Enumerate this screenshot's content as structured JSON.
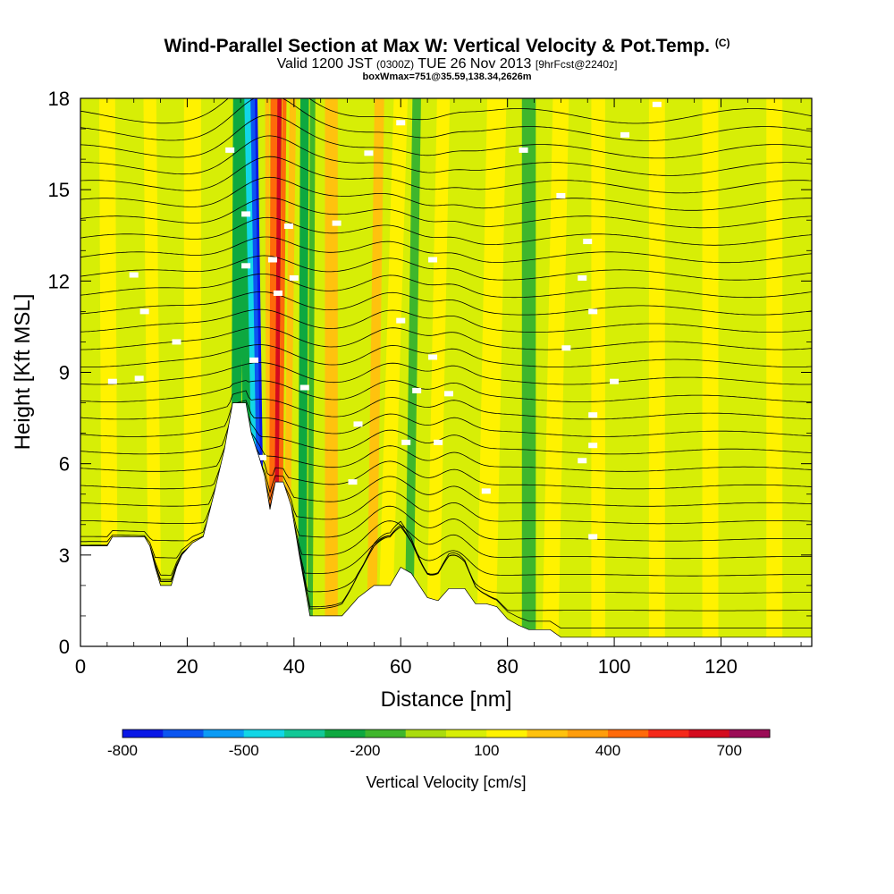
{
  "title": {
    "main": "Wind-Parallel Section at Max W: Vertical Velocity & Pot.Temp.",
    "copyright": "(C)",
    "valid_prefix": "Valid 1200 JST",
    "valid_utc": "(0300Z)",
    "valid_date": "TUE 26 Nov 2013",
    "forecast": "[9hrFcst@2240z]",
    "boxwmax": "boxWmax=751@35.59,138.34,2626m"
  },
  "chart_data": {
    "type": "heatmap",
    "xlabel": "Distance [nm]",
    "ylabel": "Height [Kft MSL]",
    "xlim": [
      0,
      137
    ],
    "ylim": [
      0,
      18
    ],
    "x_ticks": [
      0,
      20,
      40,
      60,
      80,
      100,
      120
    ],
    "y_ticks": [
      0,
      3,
      6,
      9,
      12,
      15,
      18
    ],
    "colorbar": {
      "title": "Vertical Velocity [cm/s]",
      "labels": [
        -800,
        -500,
        -200,
        100,
        400,
        700
      ],
      "bins": [
        -800,
        -700,
        -600,
        -500,
        -400,
        -300,
        -200,
        -100,
        0,
        100,
        200,
        300,
        400,
        500,
        600,
        700,
        800
      ],
      "colors": [
        "#0a18e6",
        "#0b55f0",
        "#0b9bf5",
        "#12d6e6",
        "#12c896",
        "#0ea840",
        "#3fb62c",
        "#aadc0e",
        "#d7ee06",
        "#fff200",
        "#ffc20e",
        "#ff9d0c",
        "#ff6a0a",
        "#f5291a",
        "#d40b1e",
        "#9b0c56",
        "#5c0e8c"
      ]
    },
    "terrain_kft": [
      [
        0,
        3.3
      ],
      [
        5,
        3.3
      ],
      [
        6,
        3.6
      ],
      [
        12,
        3.6
      ],
      [
        13,
        3.3
      ],
      [
        14,
        2.6
      ],
      [
        15,
        2.0
      ],
      [
        17,
        2.0
      ],
      [
        18,
        2.6
      ],
      [
        19,
        3.0
      ],
      [
        21,
        3.4
      ],
      [
        23,
        3.6
      ],
      [
        25,
        5.0
      ],
      [
        27,
        6.5
      ],
      [
        28.5,
        8.0
      ],
      [
        31,
        8.0
      ],
      [
        32,
        7.0
      ],
      [
        33.5,
        6.2
      ],
      [
        34.5,
        5.6
      ],
      [
        35.5,
        4.5
      ],
      [
        36.5,
        5.4
      ],
      [
        38,
        5.4
      ],
      [
        39.5,
        4.6
      ],
      [
        41,
        3.0
      ],
      [
        42,
        2.0
      ],
      [
        43,
        1.0
      ],
      [
        49,
        1.0
      ],
      [
        52,
        1.6
      ],
      [
        55,
        2.0
      ],
      [
        58,
        2.0
      ],
      [
        60,
        2.6
      ],
      [
        62,
        2.4
      ],
      [
        63.5,
        2.0
      ],
      [
        65,
        1.6
      ],
      [
        67,
        1.5
      ],
      [
        69,
        1.9
      ],
      [
        72,
        1.9
      ],
      [
        74,
        1.4
      ],
      [
        76,
        1.4
      ],
      [
        78,
        1.3
      ],
      [
        80,
        0.9
      ],
      [
        82,
        0.7
      ],
      [
        84,
        0.55
      ],
      [
        88,
        0.55
      ],
      [
        90,
        0.3
      ],
      [
        137,
        0.3
      ]
    ],
    "velocity_bands_cm_s": [
      {
        "x_surface": 0.5,
        "x_top": 0.5,
        "width": 1.6,
        "value": 0
      },
      {
        "x_surface": 5.5,
        "x_top": 5.0,
        "width": 3.0,
        "value": 100
      },
      {
        "x_surface": 10.0,
        "x_top": 8.5,
        "width": 1.8,
        "value": 0
      },
      {
        "x_surface": 14.0,
        "x_top": 13.0,
        "width": 2.4,
        "value": 150
      },
      {
        "x_surface": 19.0,
        "x_top": 16.5,
        "width": 2.4,
        "value": 0
      },
      {
        "x_surface": 21.0,
        "x_top": 21.0,
        "width": 3.2,
        "value": 100
      },
      {
        "x_surface": 26.0,
        "x_top": 24.0,
        "width": 2.0,
        "value": 0
      },
      {
        "x_surface": 29.0,
        "x_top": 29.5,
        "width": 1.8,
        "value": -220
      },
      {
        "x_surface": 32.0,
        "x_top": 30.0,
        "width": 1.6,
        "value": -260
      },
      {
        "x_surface": 33.3,
        "x_top": 31.3,
        "width": 1.2,
        "value": -420
      },
      {
        "x_surface": 33.9,
        "x_top": 32.3,
        "width": 0.9,
        "value": -620
      },
      {
        "x_surface": 34.4,
        "x_top": 32.9,
        "width": 0.5,
        "value": -760
      },
      {
        "x_surface": 35.2,
        "x_top": 35.0,
        "width": 0.8,
        "value": 200
      },
      {
        "x_surface": 36.0,
        "x_top": 36.3,
        "width": 1.4,
        "value": 460
      },
      {
        "x_surface": 36.6,
        "x_top": 37.3,
        "width": 0.8,
        "value": 620
      },
      {
        "x_surface": 37.3,
        "x_top": 38.2,
        "width": 0.8,
        "value": 480
      },
      {
        "x_surface": 38.5,
        "x_top": 39.8,
        "width": 1.2,
        "value": 200
      },
      {
        "x_surface": 41.5,
        "x_top": 42.0,
        "width": 1.6,
        "value": -220
      },
      {
        "x_surface": 43.0,
        "x_top": 43.5,
        "width": 1.0,
        "value": -150
      },
      {
        "x_surface": 47.0,
        "x_top": 47.0,
        "width": 2.4,
        "value": 200
      },
      {
        "x_surface": 52.0,
        "x_top": 52.0,
        "width": 2.4,
        "value": 0
      },
      {
        "x_surface": 54.5,
        "x_top": 56.0,
        "width": 1.8,
        "value": 250
      },
      {
        "x_surface": 57.0,
        "x_top": 60.0,
        "width": 2.6,
        "value": 100
      },
      {
        "x_surface": 61.5,
        "x_top": 63.0,
        "width": 1.6,
        "value": -150
      },
      {
        "x_surface": 66.0,
        "x_top": 68.0,
        "width": 2.4,
        "value": 100
      },
      {
        "x_surface": 71.0,
        "x_top": 72.0,
        "width": 2.2,
        "value": 0
      },
      {
        "x_surface": 76.0,
        "x_top": 78.0,
        "width": 3.6,
        "value": 100
      },
      {
        "x_surface": 84.0,
        "x_top": 84.0,
        "width": 2.6,
        "value": -150
      },
      {
        "x_surface": 88.0,
        "x_top": 90.0,
        "width": 3.0,
        "value": 100
      },
      {
        "x_surface": 93.0,
        "x_top": 93.0,
        "width": 2.0,
        "value": 0
      },
      {
        "x_surface": 97.0,
        "x_top": 97.0,
        "width": 2.6,
        "value": 100
      },
      {
        "x_surface": 102.0,
        "x_top": 103.0,
        "width": 2.0,
        "value": 0
      },
      {
        "x_surface": 108.0,
        "x_top": 108.0,
        "width": 3.0,
        "value": 100
      },
      {
        "x_surface": 113.0,
        "x_top": 114.0,
        "width": 2.0,
        "value": 0
      },
      {
        "x_surface": 118.0,
        "x_top": 118.0,
        "width": 3.0,
        "value": 100
      },
      {
        "x_surface": 124.0,
        "x_top": 124.0,
        "width": 2.0,
        "value": 0
      },
      {
        "x_surface": 130.0,
        "x_top": 130.0,
        "width": 3.0,
        "value": 100
      },
      {
        "x_surface": 135.0,
        "x_top": 135.0,
        "width": 1.6,
        "value": 0
      }
    ],
    "theta_contours": {
      "levels": 30,
      "base_height_kft": 0.6,
      "spacing_kft": 0.58,
      "mountain_wave": {
        "center_x": 34.5,
        "amplitude_kft": 1.2,
        "width_nm": 8
      },
      "lee_waves": [
        {
          "center_x": 58,
          "amplitude_kft": 1.6,
          "width_nm": 6
        },
        {
          "center_x": 70,
          "amplitude_kft": 1.0,
          "width_nm": 4
        }
      ]
    },
    "labeled_points": [
      {
        "x": 10,
        "y": 12.2
      },
      {
        "x": 12,
        "y": 11.0
      },
      {
        "x": 6,
        "y": 8.7
      },
      {
        "x": 11,
        "y": 8.8
      },
      {
        "x": 18,
        "y": 10.0
      },
      {
        "x": 28,
        "y": 16.3
      },
      {
        "x": 31,
        "y": 14.2
      },
      {
        "x": 31,
        "y": 12.5
      },
      {
        "x": 32.5,
        "y": 9.4
      },
      {
        "x": 34,
        "y": 6.2
      },
      {
        "x": 36,
        "y": 12.7
      },
      {
        "x": 37,
        "y": 11.6
      },
      {
        "x": 39,
        "y": 13.8
      },
      {
        "x": 40,
        "y": 12.1
      },
      {
        "x": 42,
        "y": 8.5
      },
      {
        "x": 48,
        "y": 13.9
      },
      {
        "x": 54,
        "y": 16.2
      },
      {
        "x": 60,
        "y": 17.2
      },
      {
        "x": 66,
        "y": 12.7
      },
      {
        "x": 66,
        "y": 9.5
      },
      {
        "x": 63,
        "y": 8.4
      },
      {
        "x": 69,
        "y": 8.3
      },
      {
        "x": 60,
        "y": 10.7
      },
      {
        "x": 52,
        "y": 7.3
      },
      {
        "x": 61,
        "y": 6.7
      },
      {
        "x": 67,
        "y": 6.7
      },
      {
        "x": 51,
        "y": 5.4
      },
      {
        "x": 76,
        "y": 5.1
      },
      {
        "x": 83,
        "y": 16.3
      },
      {
        "x": 90,
        "y": 14.8
      },
      {
        "x": 95,
        "y": 13.3
      },
      {
        "x": 94,
        "y": 12.1
      },
      {
        "x": 96,
        "y": 11.0
      },
      {
        "x": 91,
        "y": 9.8
      },
      {
        "x": 100,
        "y": 8.7
      },
      {
        "x": 96,
        "y": 7.6
      },
      {
        "x": 96,
        "y": 6.6
      },
      {
        "x": 94,
        "y": 6.1
      },
      {
        "x": 102,
        "y": 16.8
      },
      {
        "x": 108,
        "y": 17.8
      },
      {
        "x": 96,
        "y": 3.6
      }
    ]
  }
}
